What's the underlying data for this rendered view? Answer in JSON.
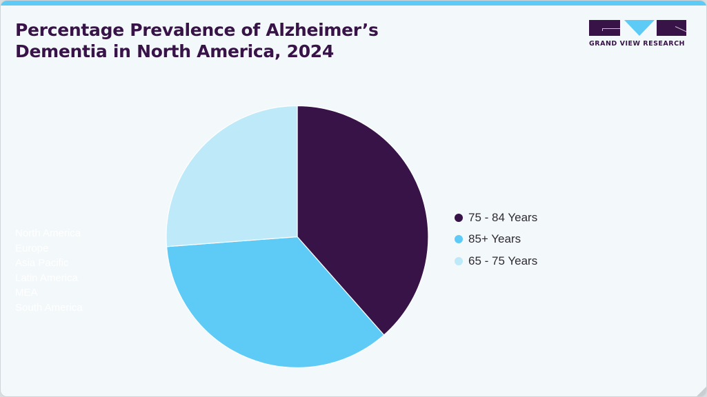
{
  "header": {
    "title_line1": "Percentage Prevalence of Alzheimer’s",
    "title_line2": "Dementia in North America, 2024"
  },
  "logo": {
    "text": "GRAND VIEW RESEARCH",
    "icon": "gvr-logo-icon"
  },
  "hidden_region_list": [
    "North America",
    "Europe",
    "Asia Pacific",
    "Latin America",
    "MEA",
    "South America"
  ],
  "colors": {
    "dark_purple": "#371347",
    "mid_blue": "#5ecbf6",
    "light_blue": "#bde9f9",
    "background": "#f3f8fb"
  },
  "chart_data": {
    "type": "pie",
    "title": "Percentage Prevalence of Alzheimer’s Dementia in North America, 2024",
    "categories": [
      "75 - 84 Years",
      "85+ Years",
      "65 - 75 Years"
    ],
    "values": [
      38.5,
      35.3,
      26.2
    ],
    "unit": "%",
    "colors": [
      "#371347",
      "#5ecbf6",
      "#bde9f9"
    ],
    "start_angle_deg": 0,
    "direction": "clockwise",
    "legend_position": "right"
  },
  "legend": [
    {
      "label": "75 - 84 Years",
      "color": "#371347"
    },
    {
      "label": "85+ Years",
      "color": "#5ecbf6"
    },
    {
      "label": "65 - 75 Years",
      "color": "#bde9f9"
    }
  ]
}
